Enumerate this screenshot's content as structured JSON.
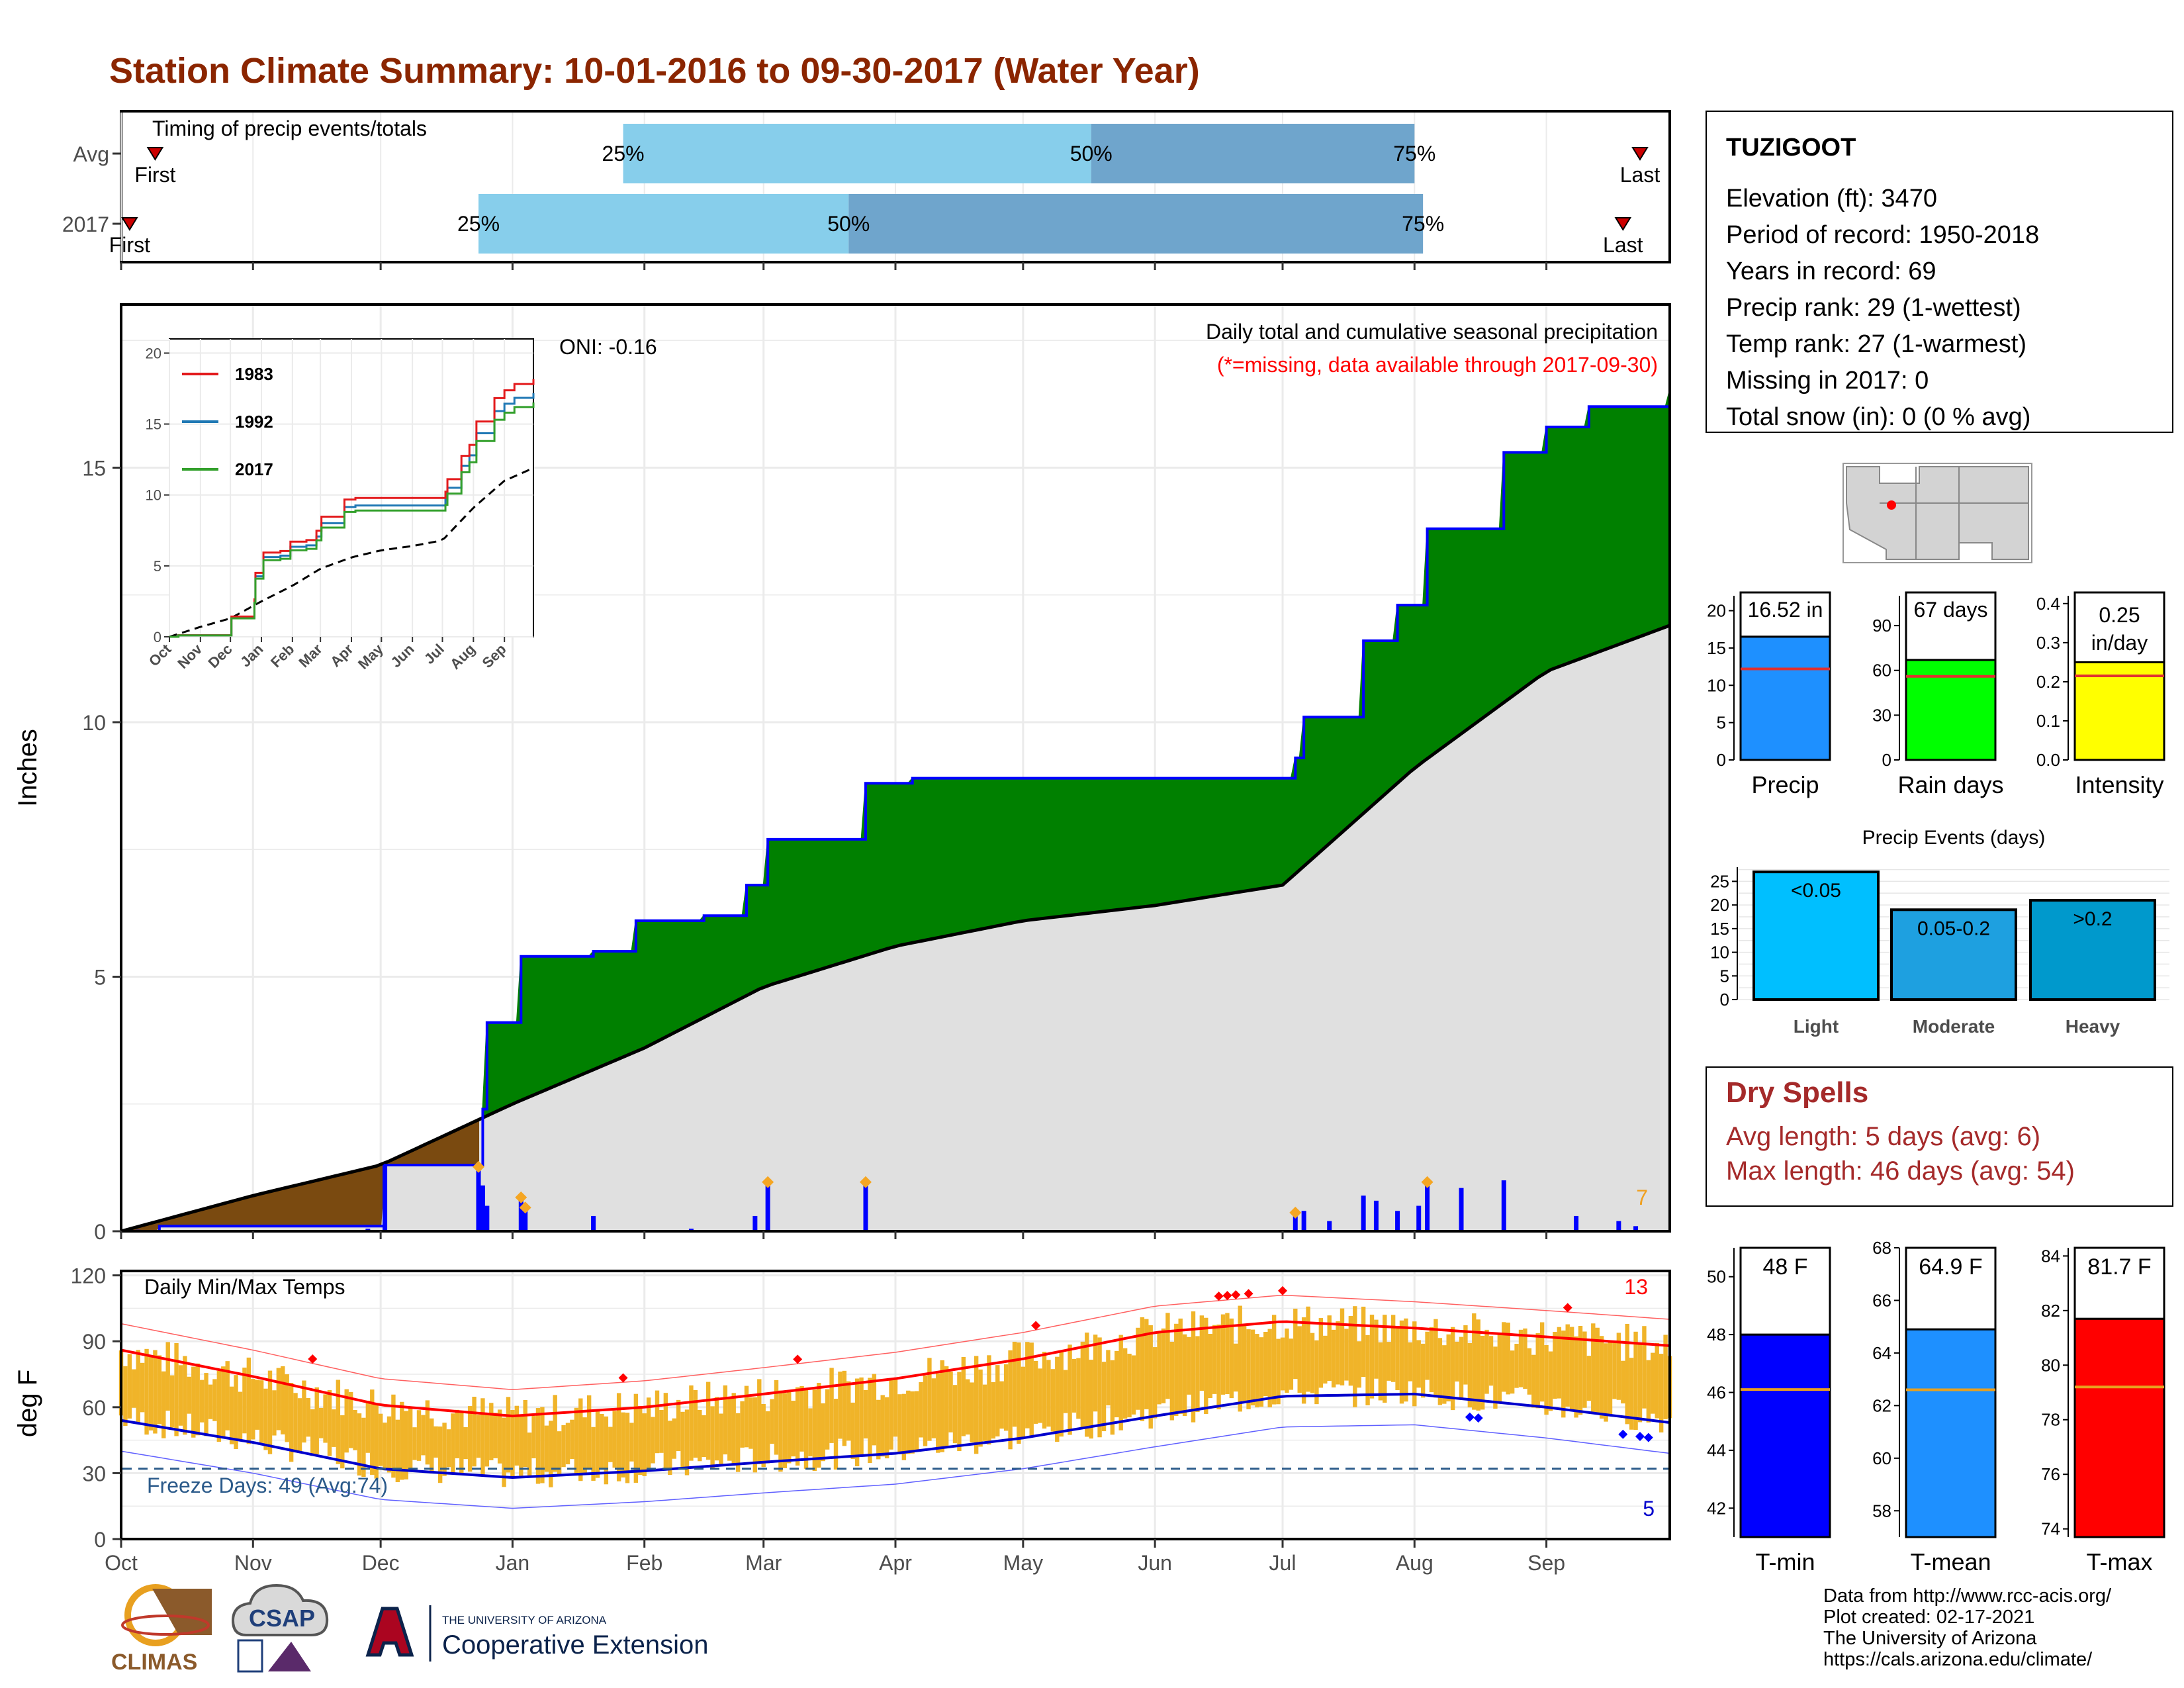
{
  "title": "Station Climate Summary: 10-01-2016 to 09-30-2017 (Water Year)",
  "colors": {
    "title": "#8b2500",
    "bar_light": "#87ceeb",
    "bar_dark": "#6fa5cc",
    "green": "#008000",
    "brown": "#7a4a10",
    "gray_area": "#e0e0e0",
    "blue": "#0000ff",
    "orange": "#f0b429",
    "red": "#ff0000",
    "dark_red_text": "#a52a2a"
  },
  "timing_panel": {
    "label": "Timing of precip events/totals",
    "rows": [
      {
        "name": "Avg",
        "first": "10-09",
        "p25": "01-27",
        "p50": "05-17",
        "p75": "08-01",
        "last": "09-23"
      },
      {
        "name": "2017",
        "first": "10-03",
        "p25": "12-24",
        "p50": "03-21",
        "p75": "08-03",
        "last": "09-19"
      }
    ],
    "first_label": "First",
    "last_label": "Last",
    "labels_pct": [
      "25%",
      "50%",
      "75%"
    ]
  },
  "precip_panel": {
    "title": "Daily total and cumulative seasonal precipitation",
    "missing_note": "(*=missing, data available through 2017-09-30)",
    "oni": "ONI: -0.16",
    "ylabel": "Inches",
    "yticks": [
      0,
      5,
      10,
      15
    ],
    "extreme_count": "7"
  },
  "inset": {
    "series": [
      {
        "name": "1983",
        "color": "#e31a1c"
      },
      {
        "name": "1992",
        "color": "#1f78b4"
      },
      {
        "name": "2017",
        "color": "#33a02c"
      }
    ],
    "yticks": [
      0,
      5,
      10,
      15,
      20
    ],
    "xticks": [
      "Oct",
      "Nov",
      "Dec",
      "Jan",
      "Feb",
      "Mar",
      "Apr",
      "May",
      "Jun",
      "Jul",
      "Aug",
      "Sep"
    ]
  },
  "temp_panel": {
    "title": "Daily Min/Max Temps",
    "ylabel": "deg F",
    "yticks": [
      0,
      30,
      60,
      90,
      120
    ],
    "freeze_label": "Freeze Days: 49 (Avg:74)",
    "hot_count": "13",
    "cold_count": "5"
  },
  "months": [
    "Oct",
    "Nov",
    "Dec",
    "Jan",
    "Feb",
    "Mar",
    "Apr",
    "May",
    "Jun",
    "Jul",
    "Aug",
    "Sep"
  ],
  "station": {
    "name": "TUZIGOOT",
    "lines": [
      "Elevation (ft): 3470",
      "Period of record: 1950-2018",
      "Years in record: 69",
      "Precip rank: 29 (1-wettest)",
      "Temp rank: 27 (1-warmest)",
      "Missing in 2017: 0",
      "Total snow (in): 0 (0 % avg)"
    ]
  },
  "mini_bars": [
    {
      "label": "Precip",
      "value": 16.52,
      "value_text": "16.52 in",
      "avg": 12.2,
      "ymax": 22,
      "yticks": [
        0,
        5,
        10,
        15,
        20
      ],
      "color": "#1e90ff"
    },
    {
      "label": "Rain days",
      "value": 67,
      "value_text": "67 days",
      "avg": 56,
      "ymax": 110,
      "yticks": [
        0,
        30,
        60,
        90
      ],
      "color": "#00ff00"
    },
    {
      "label": "Intensity",
      "value": 0.25,
      "value_text": "0.25 in/day",
      "avg": 0.215,
      "ymax": 0.42,
      "yticks": [
        0.0,
        0.1,
        0.2,
        0.3,
        0.4
      ],
      "color": "#ffff00"
    }
  ],
  "precip_events": {
    "title": "Precip Events (days)",
    "yticks": [
      0,
      5,
      10,
      15,
      20,
      25
    ],
    "bars": [
      {
        "category": "Light",
        "range_label": "<0.05",
        "value": 27,
        "color": "#00bfff"
      },
      {
        "category": "Moderate",
        "range_label": "0.05-0.2",
        "value": 19,
        "color": "#1ea0e0"
      },
      {
        "category": "Heavy",
        "range_label": ">0.2",
        "value": 21,
        "color": "#0099cc"
      }
    ]
  },
  "dry_spells": {
    "title": "Dry Spells",
    "avg": "Avg length: 5 days (avg: 6)",
    "max": "Max length: 46 days (avg: 54)"
  },
  "temp_bars": [
    {
      "label": "T-min",
      "value": 48,
      "value_text": "48 F",
      "avg": 46.1,
      "ymin": 41,
      "ymax": 51,
      "yticks": [
        42,
        44,
        46,
        48,
        50
      ],
      "color": "#0000ff"
    },
    {
      "label": "T-mean",
      "value": 64.9,
      "value_text": "64.9 F",
      "avg": 62.6,
      "ymin": 57,
      "ymax": 68,
      "yticks": [
        58,
        60,
        62,
        64,
        66,
        68
      ],
      "color": "#1e90ff"
    },
    {
      "label": "T-max",
      "value": 81.7,
      "value_text": "81.7 F",
      "avg": 79.2,
      "ymin": 73.7,
      "ymax": 84.3,
      "yticks": [
        74,
        76,
        78,
        80,
        82,
        84
      ],
      "color": "#ff0000"
    }
  ],
  "credits": [
    "Data from http://www.rcc-acis.org/",
    "Plot created: 02-17-2021",
    "The University of Arizona",
    "https://cals.arizona.edu/climate/"
  ],
  "logos": {
    "climas": "CLIMAS",
    "csap": "CSAP",
    "ua_small": "THE UNIVERSITY OF ARIZONA",
    "ua_big": "Cooperative Extension"
  },
  "chart_data": {
    "type": "area",
    "title": "Daily total and cumulative seasonal precipitation",
    "ylabel": "Inches",
    "ylim": [
      0,
      18.2
    ],
    "cumulative_2017": [
      {
        "date": "2016-10-01",
        "value": 0.0
      },
      {
        "date": "2016-10-10",
        "value": 0.1
      },
      {
        "date": "2016-12-01",
        "value": 0.1
      },
      {
        "date": "2016-12-02",
        "value": 1.3
      },
      {
        "date": "2016-12-24",
        "value": 1.3
      },
      {
        "date": "2016-12-25",
        "value": 2.4
      },
      {
        "date": "2016-12-26",
        "value": 4.1
      },
      {
        "date": "2017-01-02",
        "value": 4.1
      },
      {
        "date": "2017-01-03",
        "value": 5.4
      },
      {
        "date": "2017-01-20",
        "value": 5.5
      },
      {
        "date": "2017-01-30",
        "value": 6.1
      },
      {
        "date": "2017-02-15",
        "value": 6.2
      },
      {
        "date": "2017-02-25",
        "value": 6.8
      },
      {
        "date": "2017-03-02",
        "value": 7.7
      },
      {
        "date": "2017-03-25",
        "value": 8.8
      },
      {
        "date": "2017-04-05",
        "value": 8.9
      },
      {
        "date": "2017-07-04",
        "value": 9.3
      },
      {
        "date": "2017-07-06",
        "value": 10.1
      },
      {
        "date": "2017-07-20",
        "value": 11.6
      },
      {
        "date": "2017-07-28",
        "value": 12.3
      },
      {
        "date": "2017-08-04",
        "value": 13.8
      },
      {
        "date": "2017-08-22",
        "value": 15.3
      },
      {
        "date": "2017-09-01",
        "value": 15.8
      },
      {
        "date": "2017-09-11",
        "value": 16.2
      },
      {
        "date": "2017-09-30",
        "value": 16.52
      }
    ],
    "cumulative_avg": [
      {
        "date": "2016-10-01",
        "value": 0.0
      },
      {
        "date": "2016-11-01",
        "value": 0.7
      },
      {
        "date": "2016-12-01",
        "value": 1.3
      },
      {
        "date": "2017-01-01",
        "value": 2.5
      },
      {
        "date": "2017-02-01",
        "value": 3.6
      },
      {
        "date": "2017-03-01",
        "value": 4.8
      },
      {
        "date": "2017-04-01",
        "value": 5.6
      },
      {
        "date": "2017-05-01",
        "value": 6.1
      },
      {
        "date": "2017-06-01",
        "value": 6.4
      },
      {
        "date": "2017-07-01",
        "value": 6.8
      },
      {
        "date": "2017-08-01",
        "value": 9.1
      },
      {
        "date": "2017-09-01",
        "value": 11.0
      },
      {
        "date": "2017-09-30",
        "value": 11.9
      }
    ],
    "daily_2017": [
      {
        "date": "2016-10-05",
        "value": 0.03
      },
      {
        "date": "2016-11-28",
        "value": 0.05
      },
      {
        "date": "2016-12-02",
        "value": 1.3
      },
      {
        "date": "2016-12-24",
        "value": 1.2
      },
      {
        "date": "2016-12-25",
        "value": 0.9
      },
      {
        "date": "2016-12-26",
        "value": 0.5
      },
      {
        "date": "2017-01-03",
        "value": 0.6
      },
      {
        "date": "2017-01-04",
        "value": 0.4
      },
      {
        "date": "2017-01-20",
        "value": 0.3
      },
      {
        "date": "2017-02-12",
        "value": 0.05
      },
      {
        "date": "2017-02-27",
        "value": 0.3
      },
      {
        "date": "2017-03-02",
        "value": 0.9
      },
      {
        "date": "2017-03-25",
        "value": 0.9
      },
      {
        "date": "2017-07-04",
        "value": 0.3
      },
      {
        "date": "2017-07-06",
        "value": 0.4
      },
      {
        "date": "2017-07-12",
        "value": 0.2
      },
      {
        "date": "2017-07-20",
        "value": 0.7
      },
      {
        "date": "2017-07-23",
        "value": 0.6
      },
      {
        "date": "2017-07-28",
        "value": 0.4
      },
      {
        "date": "2017-08-02",
        "value": 0.5
      },
      {
        "date": "2017-08-04",
        "value": 0.9
      },
      {
        "date": "2017-08-12",
        "value": 0.85
      },
      {
        "date": "2017-08-22",
        "value": 1.0
      },
      {
        "date": "2017-09-08",
        "value": 0.3
      },
      {
        "date": "2017-09-18",
        "value": 0.2
      },
      {
        "date": "2017-09-22",
        "value": 0.1
      }
    ],
    "temperature": {
      "ylabel": "deg F",
      "ylim": [
        0,
        122
      ],
      "avg_max": [
        {
          "date": "2016-10-01",
          "value": 86
        },
        {
          "date": "2016-11-01",
          "value": 74
        },
        {
          "date": "2016-12-01",
          "value": 61
        },
        {
          "date": "2017-01-01",
          "value": 56
        },
        {
          "date": "2017-02-01",
          "value": 60
        },
        {
          "date": "2017-03-01",
          "value": 66
        },
        {
          "date": "2017-04-01",
          "value": 73
        },
        {
          "date": "2017-05-01",
          "value": 82
        },
        {
          "date": "2017-06-01",
          "value": 94
        },
        {
          "date": "2017-07-01",
          "value": 99
        },
        {
          "date": "2017-08-01",
          "value": 96
        },
        {
          "date": "2017-09-01",
          "value": 92
        },
        {
          "date": "2017-09-30",
          "value": 88
        }
      ],
      "avg_min": [
        {
          "date": "2016-10-01",
          "value": 54
        },
        {
          "date": "2016-11-01",
          "value": 44
        },
        {
          "date": "2016-12-01",
          "value": 32
        },
        {
          "date": "2017-01-01",
          "value": 28
        },
        {
          "date": "2017-02-01",
          "value": 31
        },
        {
          "date": "2017-03-01",
          "value": 35
        },
        {
          "date": "2017-04-01",
          "value": 39
        },
        {
          "date": "2017-05-01",
          "value": 46
        },
        {
          "date": "2017-06-01",
          "value": 56
        },
        {
          "date": "2017-07-01",
          "value": 65
        },
        {
          "date": "2017-08-01",
          "value": 66
        },
        {
          "date": "2017-09-01",
          "value": 60
        },
        {
          "date": "2017-09-30",
          "value": 53
        }
      ]
    }
  }
}
